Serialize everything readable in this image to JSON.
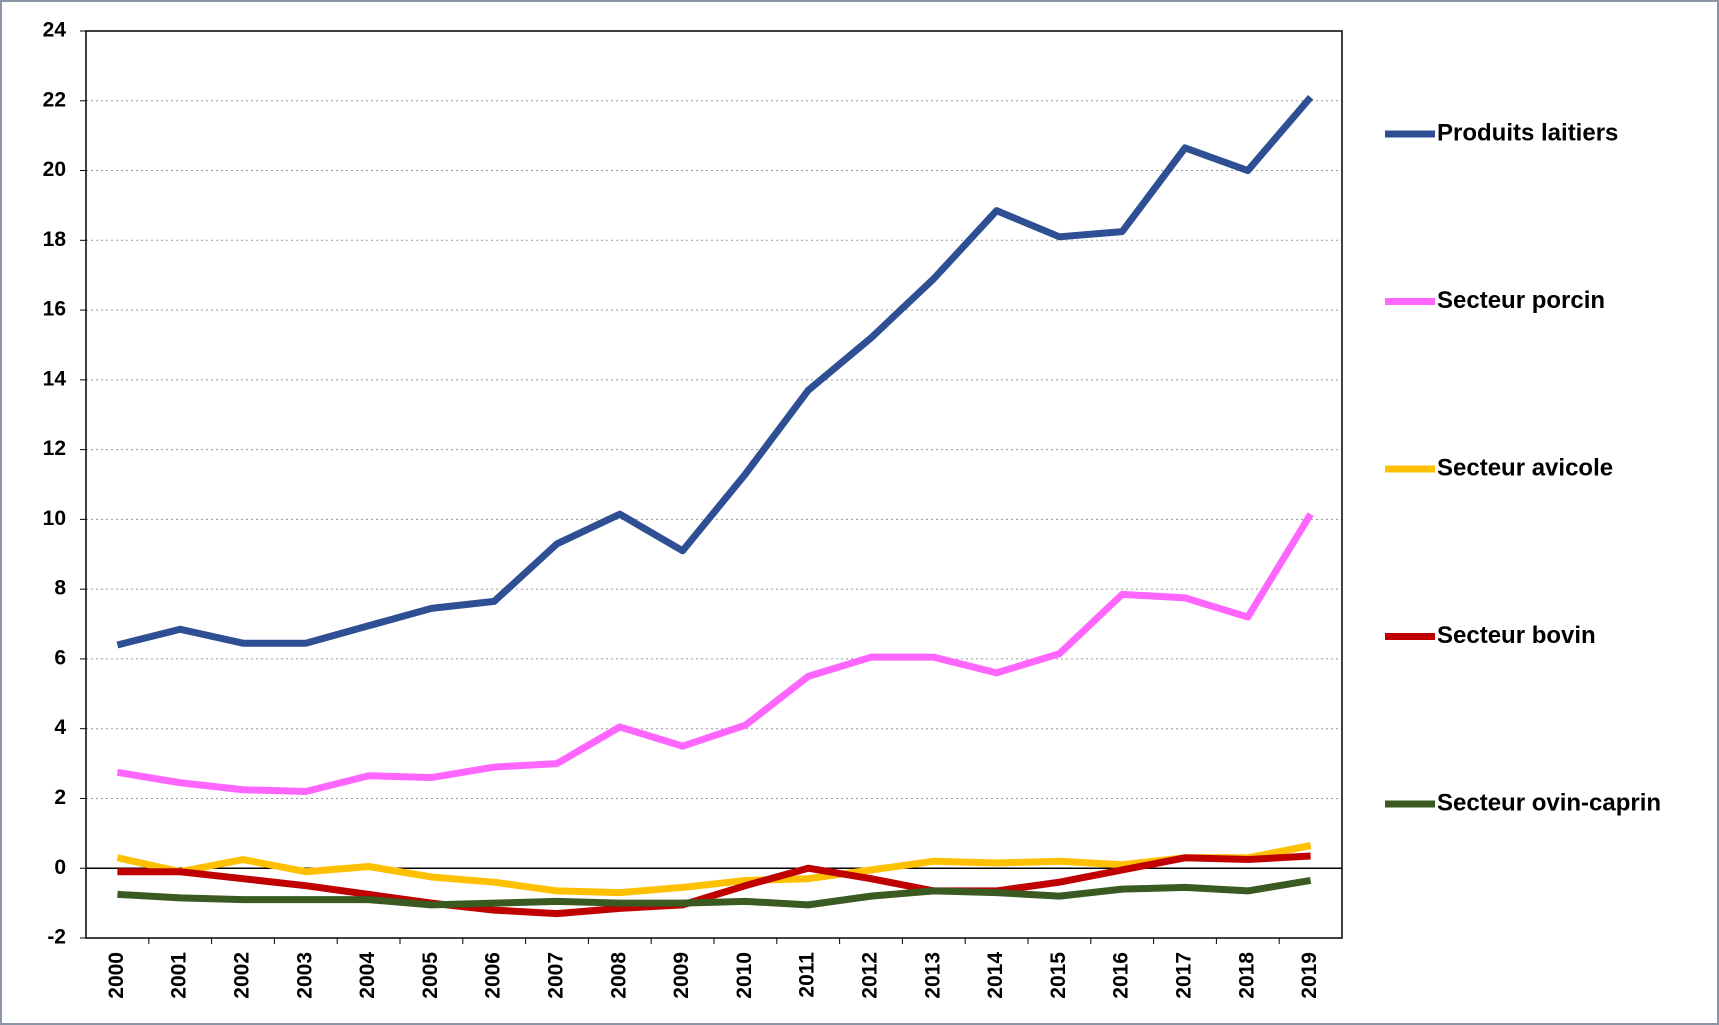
{
  "chart_data": {
    "type": "line",
    "categories": [
      "2000",
      "2001",
      "2002",
      "2003",
      "2004",
      "2005",
      "2006",
      "2007",
      "2008",
      "2009",
      "2010",
      "2011",
      "2012",
      "2013",
      "2014",
      "2015",
      "2016",
      "2017",
      "2018",
      "2019"
    ],
    "series": [
      {
        "name": "Produits laitiers",
        "color": "#2e4f94",
        "values": [
          6.4,
          6.85,
          6.45,
          6.45,
          6.95,
          7.45,
          7.65,
          9.3,
          10.15,
          9.1,
          11.3,
          13.7,
          15.2,
          16.9,
          18.85,
          18.1,
          18.25,
          20.65,
          20.0,
          22.1
        ]
      },
      {
        "name": "Secteur porcin",
        "color": "#ff66ff",
        "values": [
          2.75,
          2.45,
          2.25,
          2.2,
          2.65,
          2.6,
          2.9,
          3.0,
          4.05,
          3.5,
          4.1,
          5.5,
          6.05,
          6.05,
          5.6,
          6.15,
          7.85,
          7.75,
          7.2,
          10.15
        ]
      },
      {
        "name": "Secteur avicole",
        "color": "#ffc000",
        "values": [
          0.3,
          -0.1,
          0.25,
          -0.1,
          0.05,
          -0.25,
          -0.4,
          -0.65,
          -0.7,
          -0.55,
          -0.35,
          -0.3,
          -0.05,
          0.2,
          0.15,
          0.2,
          0.1,
          0.3,
          0.3,
          0.65
        ]
      },
      {
        "name": "Secteur bovin",
        "color": "#c00000",
        "values": [
          -0.1,
          -0.1,
          -0.3,
          -0.5,
          -0.75,
          -1.0,
          -1.2,
          -1.3,
          -1.15,
          -1.05,
          -0.5,
          0.0,
          -0.3,
          -0.65,
          -0.65,
          -0.4,
          -0.05,
          0.3,
          0.25,
          0.35
        ]
      },
      {
        "name": "Secteur ovin-caprin",
        "color": "#3a5a22",
        "values": [
          -0.75,
          -0.85,
          -0.9,
          -0.9,
          -0.9,
          -1.05,
          -1.0,
          -0.95,
          -1.0,
          -1.0,
          -0.95,
          -1.05,
          -0.8,
          -0.65,
          -0.7,
          -0.8,
          -0.6,
          -0.55,
          -0.65,
          -0.35
        ]
      }
    ],
    "ylim": [
      -2,
      24
    ],
    "yticks": [
      -2,
      0,
      2,
      4,
      6,
      8,
      10,
      12,
      14,
      16,
      18,
      20,
      22,
      24
    ],
    "grid": true,
    "legend": "right"
  }
}
